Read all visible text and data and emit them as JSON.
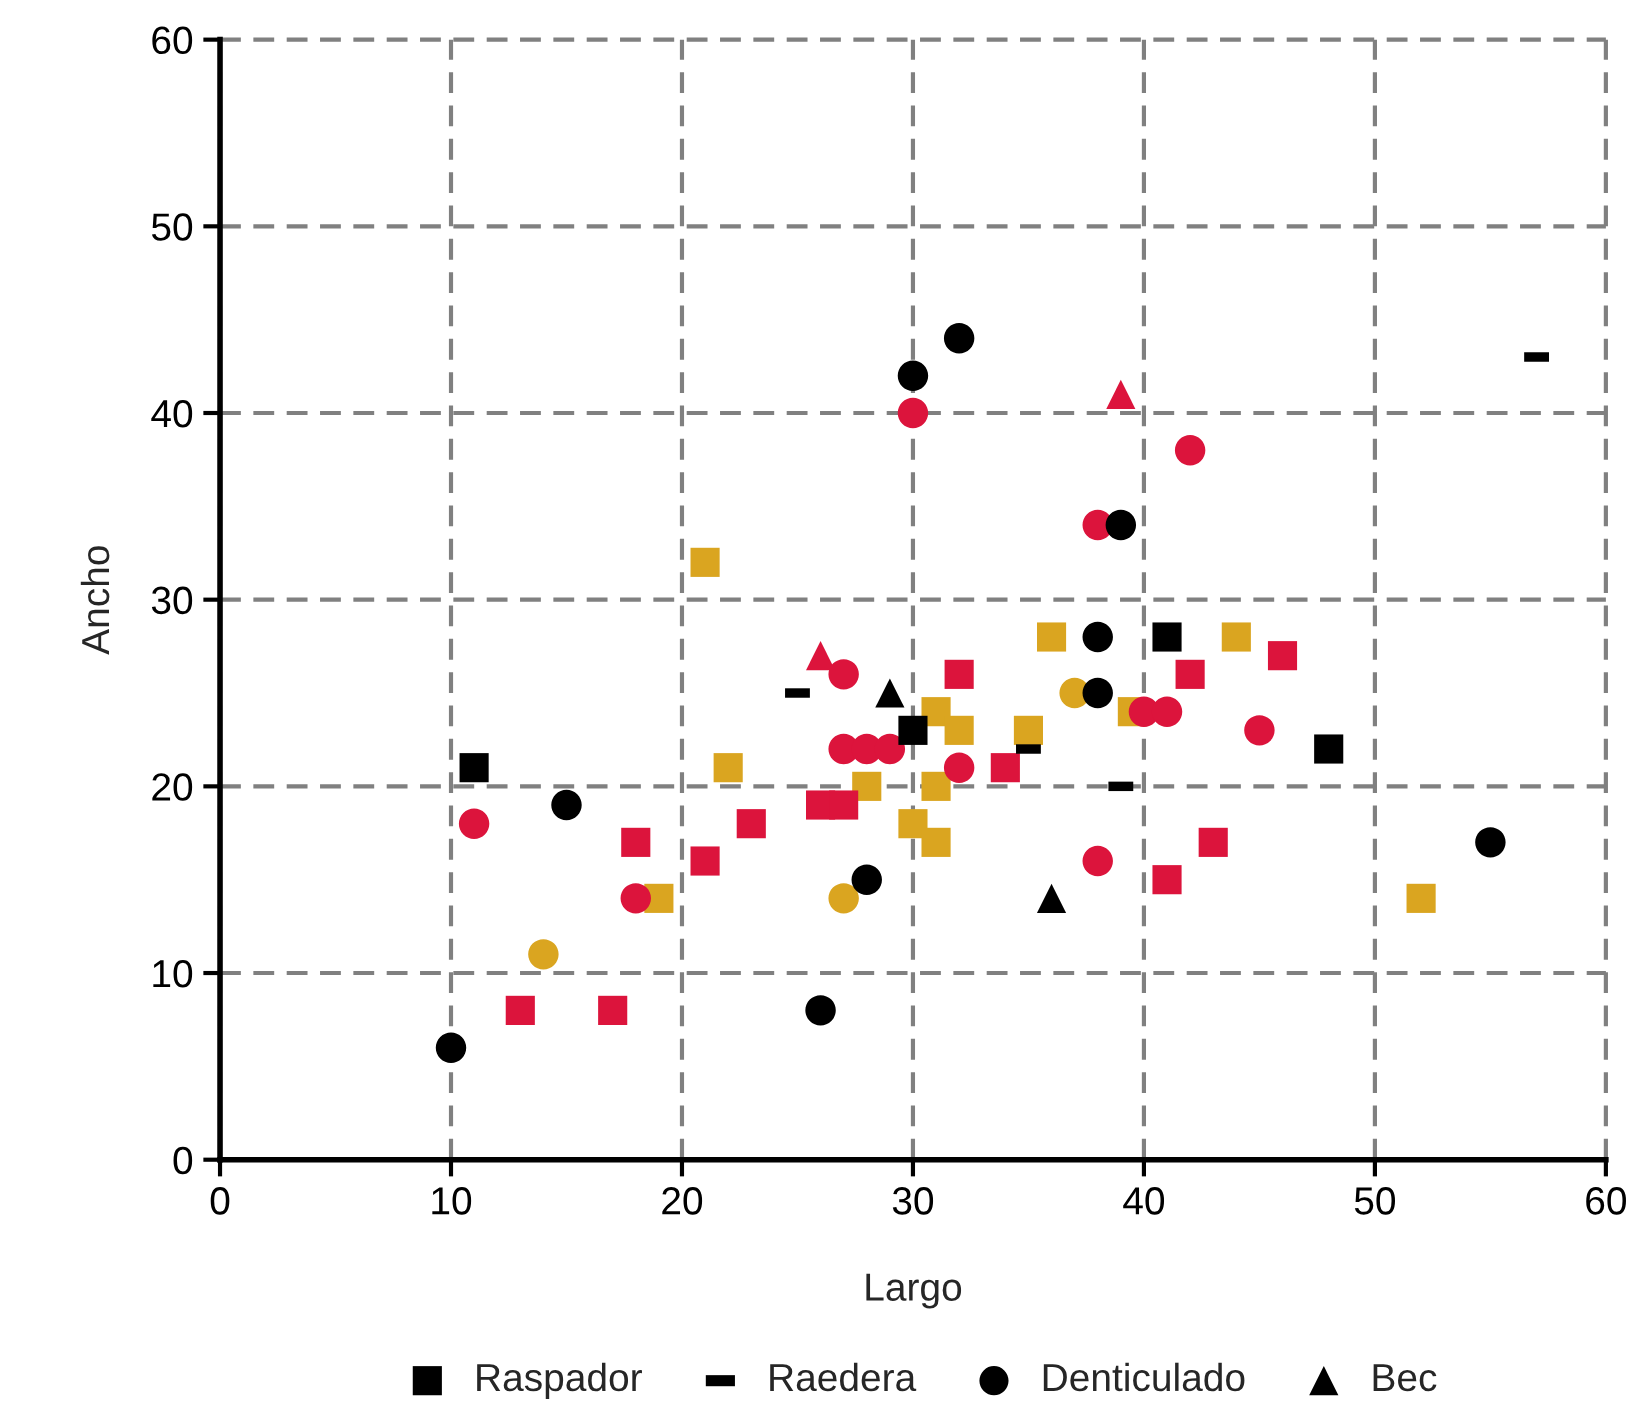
{
  "chart_data": {
    "type": "scatter",
    "xlabel": "Largo",
    "ylabel": "Ancho",
    "xlim": [
      0,
      60
    ],
    "ylim": [
      0,
      60
    ],
    "xticks": [
      0,
      10,
      20,
      30,
      40,
      50,
      60
    ],
    "yticks": [
      0,
      10,
      20,
      30,
      40,
      50,
      60
    ],
    "grid": true,
    "legend": "bottom",
    "series": [
      {
        "color": "#daa520",
        "marker": "square",
        "x": [
          19,
          21,
          22,
          28,
          30,
          31,
          31,
          31,
          32,
          35,
          36,
          39.5,
          44,
          52
        ],
        "values": [
          14,
          32,
          21,
          20,
          18,
          17,
          20,
          24,
          23,
          23,
          28,
          24,
          28,
          14
        ]
      },
      {
        "color": "#daa520",
        "marker": "circle",
        "x": [
          14,
          27,
          37
        ],
        "values": [
          11,
          14,
          25
        ]
      },
      {
        "color": "#dc143c",
        "marker": "square",
        "x": [
          13,
          17,
          18,
          21,
          23,
          26,
          27,
          32,
          34,
          41,
          42,
          43,
          46
        ],
        "values": [
          8,
          8,
          17,
          16,
          18,
          19,
          19,
          26,
          21,
          15,
          26,
          17,
          27
        ]
      },
      {
        "color": "#dc143c",
        "marker": "circle",
        "x": [
          11,
          18,
          27,
          27,
          28,
          29,
          30,
          32,
          38,
          38,
          40,
          41,
          42,
          45
        ],
        "values": [
          18,
          14,
          26,
          22,
          22,
          22,
          40,
          21,
          34,
          16,
          24,
          24,
          38,
          23
        ]
      },
      {
        "color": "#dc143c",
        "marker": "triangle",
        "x": [
          26,
          39
        ],
        "values": [
          27,
          41
        ]
      },
      {
        "name": "Raspador",
        "color": "#000000",
        "marker": "square",
        "x": [
          11,
          30,
          41,
          48
        ],
        "values": [
          21,
          23,
          28,
          22
        ]
      },
      {
        "name": "Raedera",
        "color": "#000000",
        "x": [
          25,
          35,
          39,
          57
        ],
        "values": [
          25,
          22,
          20,
          43
        ]
      },
      {
        "name": "Denticulado",
        "color": "#000000",
        "marker": "circle",
        "x": [
          10,
          15,
          26,
          28,
          30,
          32,
          38,
          38,
          39,
          55
        ],
        "values": [
          6,
          19,
          8,
          15,
          42,
          44,
          28,
          25,
          34,
          17
        ]
      },
      {
        "name": "Bec",
        "color": "#000000",
        "marker": "triangle",
        "x": [
          29,
          36
        ],
        "values": [
          25,
          14
        ]
      }
    ]
  }
}
